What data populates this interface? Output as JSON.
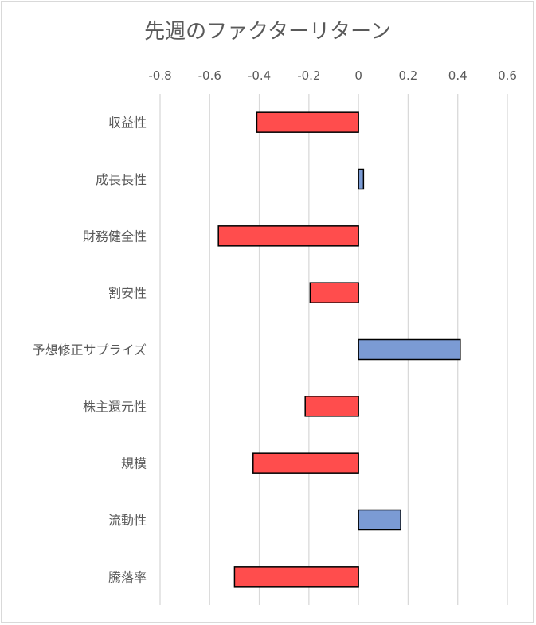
{
  "chart_data": {
    "type": "bar",
    "orientation": "horizontal",
    "title": "先週のファクターリターン",
    "xlabel": "",
    "ylabel": "",
    "xlim": [
      -0.8,
      0.6
    ],
    "xticks": [
      -0.8,
      -0.6,
      -0.4,
      -0.2,
      0,
      0.2,
      0.4,
      0.6
    ],
    "tick_labels": [
      "-0.8",
      "-0.6",
      "-0.4",
      "-0.2",
      "0",
      "0.2",
      "0.4",
      "0.6"
    ],
    "axis_position": "top",
    "grid": true,
    "categories": [
      "収益性",
      "成長長性",
      "財務健全性",
      "割安性",
      "予想修正サプライズ",
      "株主還元性",
      "規模",
      "流動性",
      "騰落率"
    ],
    "values": [
      -0.41,
      0.02,
      -0.565,
      -0.195,
      0.41,
      -0.215,
      -0.425,
      0.17,
      -0.5
    ],
    "colors": {
      "negative": "#ff4d4d",
      "positive": "#7b9bd4",
      "grid": "#d9d9d9",
      "text": "#595959"
    }
  }
}
